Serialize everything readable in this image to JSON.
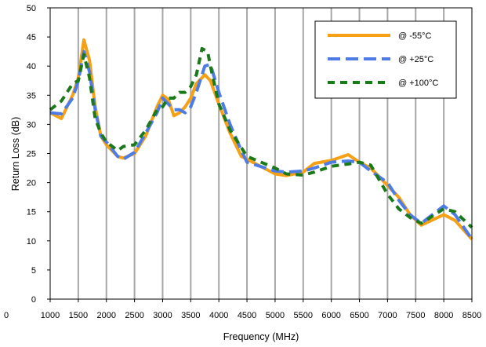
{
  "chart_data": {
    "type": "line",
    "xlabel": "Frequency (MHz)",
    "ylabel": "Return Loss (dB)",
    "xlim": [
      1000,
      8500
    ],
    "ylim": [
      0,
      50
    ],
    "x_ticks": [
      "1000",
      "1500",
      "2000",
      "2500",
      "3000",
      "3500",
      "4000",
      "4500",
      "5000",
      "5500",
      "6000",
      "6500",
      "7000",
      "7500",
      "8000",
      "8500"
    ],
    "x_tick_values": [
      1000,
      1500,
      2000,
      2500,
      3000,
      3500,
      4000,
      4500,
      5000,
      5500,
      6000,
      6500,
      7000,
      7500,
      8000,
      8500
    ],
    "y_ticks": [
      "0",
      "5",
      "10",
      "15",
      "20",
      "25",
      "30",
      "35",
      "40",
      "45",
      "50"
    ],
    "y_tick_values": [
      0,
      5,
      10,
      15,
      20,
      25,
      30,
      35,
      40,
      45,
      50
    ],
    "left_stray_label": "0",
    "grid": "vertical",
    "legend_position": "top-right",
    "series": [
      {
        "name": "@ -55°C",
        "color": "#f5a015",
        "style": "solid",
        "x": [
          1000,
          1200,
          1400,
          1500,
          1600,
          1700,
          1800,
          1900,
          2000,
          2200,
          2300,
          2500,
          2700,
          2900,
          3000,
          3100,
          3200,
          3300,
          3400,
          3500,
          3600,
          3750,
          3850,
          4000,
          4200,
          4400,
          4500,
          5000,
          5200,
          5500,
          5700,
          6000,
          6300,
          6500,
          6700,
          7000,
          7200,
          7400,
          7600,
          8000,
          8200,
          8500
        ],
        "y": [
          32,
          31,
          35,
          38,
          44.5,
          41,
          33,
          28,
          26.5,
          24.5,
          24.2,
          25,
          28,
          33,
          35,
          34.3,
          31.5,
          32,
          33,
          34.5,
          37,
          38.5,
          37.5,
          33.5,
          28.5,
          24.5,
          24,
          21.5,
          21.2,
          21.8,
          23.3,
          23.8,
          24.8,
          23.5,
          22.5,
          19.5,
          17.5,
          14.5,
          12.7,
          14.5,
          13.5,
          10.3
        ]
      },
      {
        "name": "@ +25°C",
        "color": "#4e7ce6",
        "style": "dashed",
        "x": [
          1000,
          1200,
          1400,
          1500,
          1600,
          1700,
          1800,
          1900,
          2000,
          2200,
          2300,
          2500,
          2700,
          2900,
          3000,
          3100,
          3200,
          3300,
          3400,
          3500,
          3600,
          3750,
          3850,
          4000,
          4200,
          4400,
          4500,
          5000,
          5200,
          5500,
          5700,
          6000,
          6300,
          6500,
          6700,
          7000,
          7200,
          7400,
          7600,
          8000,
          8200,
          8500
        ],
        "y": [
          32,
          31.8,
          34.5,
          37.5,
          42.5,
          39,
          32.5,
          28,
          27,
          24.5,
          24,
          25.2,
          28.5,
          32,
          34.5,
          33.5,
          32.5,
          32.5,
          32,
          33,
          35.5,
          40,
          40.3,
          35.5,
          30,
          25.5,
          23.5,
          22,
          21.8,
          22,
          22.5,
          23.5,
          23.7,
          23.5,
          22,
          20,
          17,
          14.5,
          13,
          16,
          14.5,
          10.3
        ]
      },
      {
        "name": "@ +100°C",
        "color": "#1a7a1a",
        "style": "dashed",
        "x": [
          1000,
          1200,
          1400,
          1500,
          1600,
          1700,
          1800,
          1900,
          2000,
          2200,
          2300,
          2500,
          2700,
          2900,
          3000,
          3100,
          3200,
          3300,
          3400,
          3500,
          3600,
          3700,
          3800,
          3850,
          4000,
          4200,
          4400,
          4500,
          5000,
          5200,
          5500,
          5700,
          6000,
          6300,
          6500,
          6700,
          7000,
          7200,
          7400,
          7600,
          8000,
          8200,
          8500
        ],
        "y": [
          32.5,
          34,
          37,
          37.5,
          42,
          38,
          31,
          28.5,
          27,
          25.5,
          26.2,
          26.5,
          29,
          32.5,
          33,
          34.5,
          34.5,
          35.5,
          35.5,
          36.5,
          38.5,
          43,
          42.5,
          40,
          33.5,
          29,
          26,
          24.5,
          22.5,
          21.5,
          21.3,
          21.8,
          22.8,
          23.2,
          23.5,
          23,
          18,
          15.5,
          14,
          13,
          15.5,
          15,
          12.3
        ]
      }
    ]
  }
}
